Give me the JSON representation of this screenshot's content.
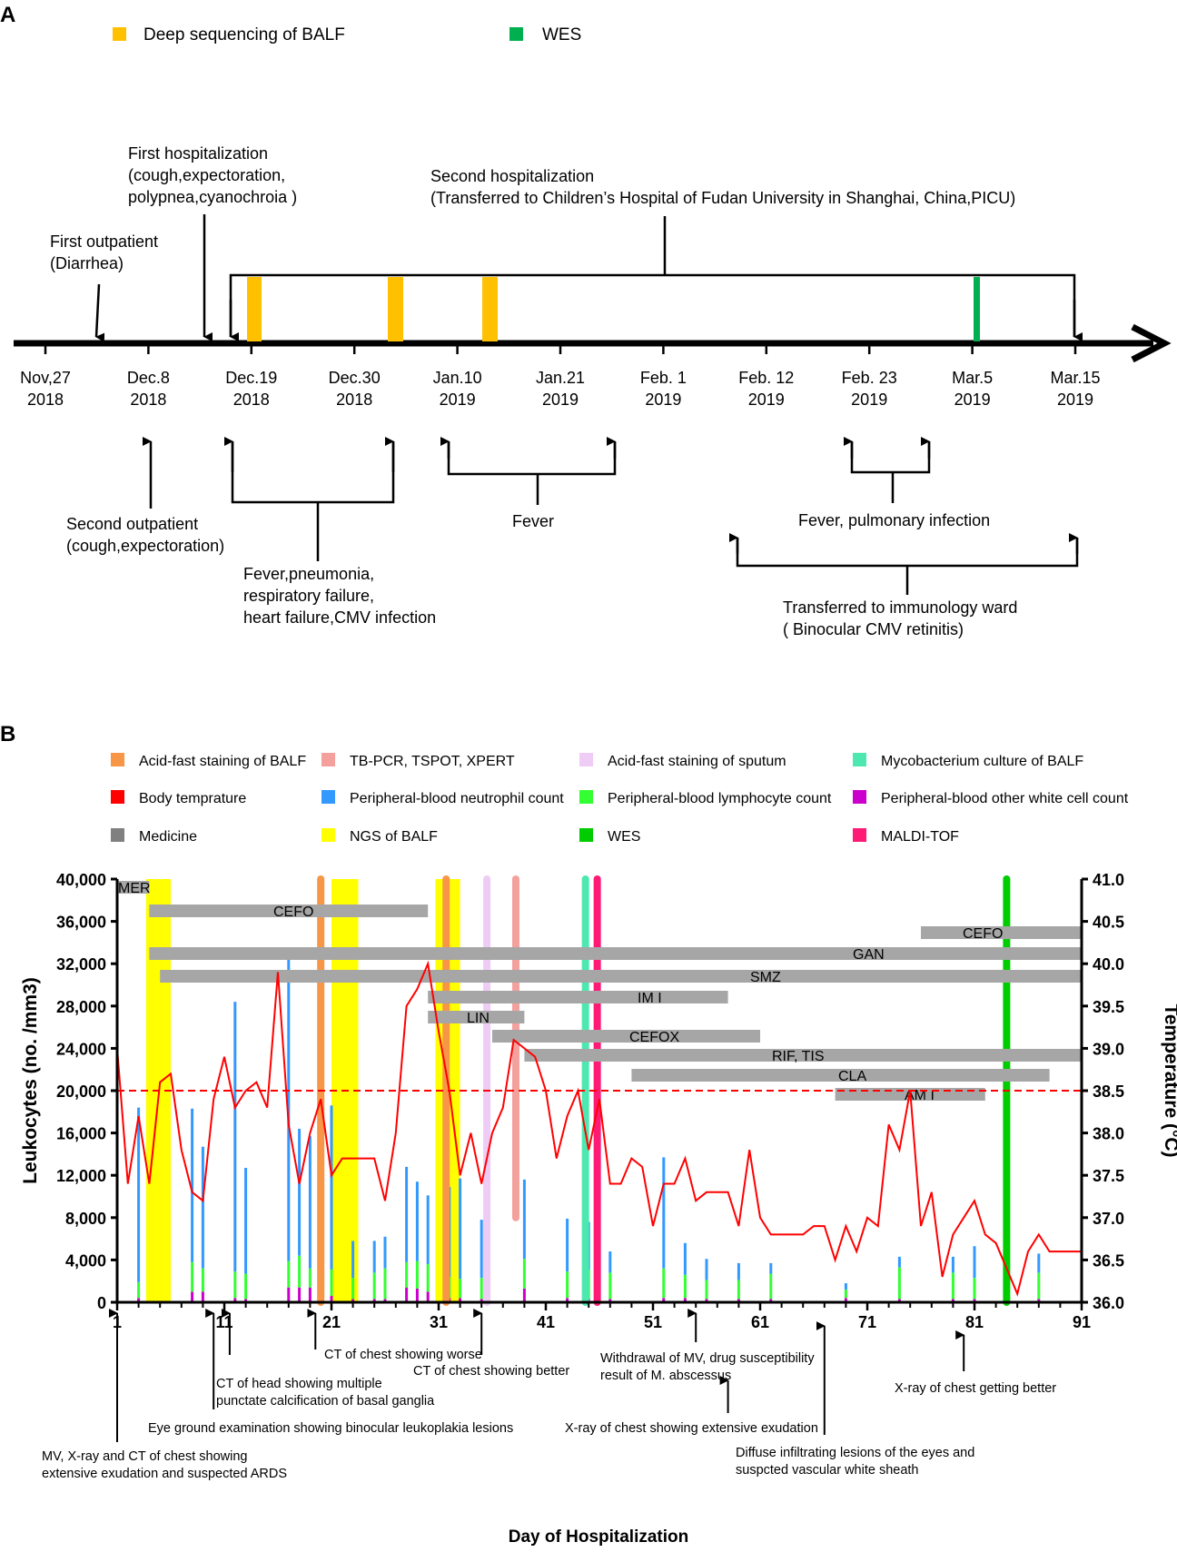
{
  "panelA": {
    "label": "A",
    "legend": [
      {
        "label": "Deep sequencing of BALF",
        "color": "#FFC000"
      },
      {
        "label": "WES",
        "color": "#00B050"
      }
    ],
    "dates": [
      {
        "line1": "Nov,27",
        "line2": "2018"
      },
      {
        "line1": "Dec.8",
        "line2": "2018"
      },
      {
        "line1": "Dec.19",
        "line2": "2018"
      },
      {
        "line1": "Dec.30",
        "line2": "2018"
      },
      {
        "line1": "Jan.10",
        "line2": "2019"
      },
      {
        "line1": "Jan.21",
        "line2": "2019"
      },
      {
        "line1": "Feb. 1",
        "line2": "2019"
      },
      {
        "line1": "Feb. 12",
        "line2": "2019"
      },
      {
        "line1": "Feb. 23",
        "line2": "2019"
      },
      {
        "line1": "Mar.5",
        "line2": "2019"
      },
      {
        "line1": "Mar.15",
        "line2": "2019"
      }
    ],
    "first_outpatient": [
      "First outpatient",
      "(Diarrhea)"
    ],
    "first_hospitalization": [
      "First hospitalization",
      "(cough,expectoration,",
      "polypnea,cyanochroia )"
    ],
    "second_hospitalization": [
      "Second hospitalization",
      "(Transferred to Children’s Hospital of Fudan University in Shanghai, China,PICU)"
    ],
    "second_outpatient": [
      "Second outpatient",
      "(cough,expectoration)"
    ],
    "fever_pneumonia": [
      "Fever,pneumonia,",
      "respiratory failure,",
      "heart failure,CMV infection"
    ],
    "fever": [
      "Fever"
    ],
    "fever_pulmonary": [
      "Fever, pulmonary infection"
    ],
    "immunology": [
      "Transferred to immunology ward",
      "( Binocular CMV retinitis)"
    ]
  },
  "panelB": {
    "label": "B",
    "legend": [
      {
        "label": "Acid-fast staining of BALF",
        "color": "#F79646"
      },
      {
        "label": "TB-PCR, TSPOT, XPERT",
        "color": "#F4A09C"
      },
      {
        "label": "Acid-fast staining of sputum",
        "color": "#EFCCF5"
      },
      {
        "label": "Mycobacterium culture of BALF",
        "color": "#4DE8B0"
      },
      {
        "label": "Body temprature",
        "color": "#FF0000"
      },
      {
        "label": "Peripheral-blood neutrophil count",
        "color": "#3399FF"
      },
      {
        "label": "Peripheral-blood lymphocyte count",
        "color": "#33FF33"
      },
      {
        "label": "Peripheral-blood other white cell count",
        "color": "#CC00CC"
      },
      {
        "label": "Medicine",
        "color": "#808080"
      },
      {
        "label": "NGS of BALF",
        "color": "#FFFF00"
      },
      {
        "label": "WES",
        "color": "#00CC00"
      },
      {
        "label": "MALDI-TOF",
        "color": "#FF1A75"
      }
    ],
    "annotations": [
      {
        "day": 1,
        "lines": [
          "MV, X-ray and CT of chest showing",
          "extensive exudation and suspected ARDS"
        ]
      },
      {
        "day": 10,
        "lines": [
          "CT of head showing multiple",
          "punctate calcification of basal ganglia"
        ]
      },
      {
        "day": 11.5,
        "lines": [
          "Eye ground examination showing binocular leukoplakia lesions"
        ]
      },
      {
        "day": 19.5,
        "lines": [
          "CT of chest showing worse"
        ]
      },
      {
        "day": 35,
        "lines": [
          "CT of chest showing  better"
        ]
      },
      {
        "day": 55,
        "lines": [
          "Withdrawal of MV, drug susceptibility",
          "result of M. abscessus"
        ]
      },
      {
        "day": 58,
        "lines": [
          "X-ray of chest showing extensive exudation"
        ]
      },
      {
        "day": 67,
        "lines": [
          "Diffuse infiltrating lesions of the eyes and",
          "suspcted vascular white sheath"
        ]
      },
      {
        "day": 80,
        "lines": [
          "X-ray of chest getting better"
        ]
      }
    ]
  },
  "chart_data": {
    "type": "bar",
    "xlabel": "Day of Hospitalization",
    "ylabel": "Leukocytes (no. /mm3)",
    "y2label": "Temperature (°C)",
    "xlim": [
      1,
      91
    ],
    "xticks": [
      1,
      11,
      21,
      31,
      41,
      51,
      61,
      71,
      81,
      91
    ],
    "ylim": [
      0,
      40000
    ],
    "yticks": [
      0,
      4000,
      8000,
      12000,
      16000,
      20000,
      24000,
      28000,
      32000,
      36000,
      40000
    ],
    "ytick_labels": [
      "0",
      "4,000",
      "8,000",
      "12,000",
      "16,000",
      "20,000",
      "24,000",
      "28,000",
      "32,000",
      "36,000",
      "40,000"
    ],
    "y2lim": [
      36.0,
      41.0
    ],
    "y2ticks": [
      "36.0",
      "36.5",
      "37.0",
      "37.5",
      "38.0",
      "38.5",
      "39.0",
      "39.5",
      "40.0",
      "40.5",
      "41.0"
    ],
    "threshold_temp": 38.5,
    "leukocytes": {
      "days": [
        1,
        3,
        8,
        9,
        12,
        13,
        17,
        18,
        19,
        20,
        21,
        23,
        25,
        26,
        28,
        29,
        30,
        32,
        33,
        35,
        39,
        43,
        45,
        47,
        52,
        54,
        56,
        59,
        62,
        69,
        74,
        79,
        81,
        87
      ],
      "neutrophil": [
        25500,
        16500,
        14500,
        11500,
        25500,
        10000,
        29500,
        12000,
        12500,
        10500,
        15500,
        3500,
        3000,
        3000,
        9000,
        7500,
        6500,
        8500,
        9500,
        5500,
        7500,
        5000,
        4500,
        2000,
        10500,
        3000,
        2000,
        1600,
        1000,
        600,
        1000,
        1500,
        3000,
        1800
      ],
      "lymphocyte": [
        3000,
        1500,
        2800,
        2200,
        2500,
        2400,
        2500,
        3000,
        1800,
        1800,
        2500,
        2000,
        2500,
        2900,
        2400,
        2600,
        2600,
        2000,
        1800,
        2000,
        2800,
        2500,
        2800,
        2500,
        2800,
        2200,
        1800,
        1800,
        2400,
        800,
        3000,
        2500,
        2000,
        2500
      ],
      "other": [
        400,
        400,
        1000,
        1000,
        400,
        300,
        1400,
        1400,
        1400,
        1100,
        600,
        300,
        300,
        300,
        1400,
        1300,
        1000,
        400,
        400,
        300,
        1300,
        400,
        300,
        300,
        400,
        400,
        300,
        300,
        300,
        400,
        300,
        300,
        300,
        300
      ]
    },
    "temperature": {
      "days": [
        1,
        2,
        3,
        4,
        5,
        6,
        7,
        8,
        9,
        10,
        11,
        12,
        13,
        14,
        15,
        16,
        17,
        18,
        19,
        20,
        21,
        22,
        23,
        24,
        25,
        26,
        27,
        28,
        29,
        30,
        31,
        32,
        33,
        34,
        35,
        36,
        37,
        38,
        39,
        40,
        41,
        42,
        43,
        44,
        45,
        46,
        47,
        48,
        49,
        50,
        51,
        52,
        53,
        54,
        55,
        56,
        57,
        58,
        59,
        60,
        61,
        62,
        63,
        64,
        65,
        66,
        67,
        68,
        69,
        70,
        71,
        72,
        73,
        74,
        75,
        76,
        77,
        78,
        79,
        80,
        81,
        82,
        83,
        84,
        85,
        86,
        87,
        88,
        89,
        90,
        91
      ],
      "values": [
        39.0,
        37.4,
        38.2,
        37.4,
        38.6,
        38.7,
        37.8,
        37.3,
        37.2,
        38.4,
        38.9,
        38.3,
        38.5,
        38.6,
        38.3,
        39.9,
        38.1,
        37.4,
        38.0,
        38.4,
        37.5,
        37.7,
        37.7,
        37.7,
        37.7,
        37.2,
        38.0,
        39.5,
        39.7,
        40.0,
        39.2,
        38.5,
        37.5,
        38.0,
        37.4,
        38.0,
        38.3,
        39.1,
        39.0,
        38.9,
        38.5,
        37.7,
        38.2,
        38.5,
        37.8,
        38.4,
        37.4,
        37.4,
        37.7,
        37.6,
        36.9,
        37.4,
        37.4,
        37.7,
        37.2,
        37.3,
        37.3,
        37.3,
        36.9,
        37.8,
        37.0,
        36.8,
        36.8,
        36.8,
        36.8,
        36.9,
        36.9,
        36.5,
        36.9,
        36.6,
        37.0,
        36.9,
        38.1,
        37.8,
        38.5,
        36.9,
        37.3,
        36.3,
        36.8,
        37.0,
        37.2,
        36.8,
        36.7,
        36.4,
        36.1,
        36.6,
        36.8,
        36.6,
        36.6,
        36.6,
        36.6
      ]
    },
    "medicine": [
      {
        "name": "MER",
        "start": 1,
        "end": 4
      },
      {
        "name": "CEFO",
        "start": 4,
        "end": 30
      },
      {
        "name": "CEFO",
        "start": 76,
        "end": 91
      },
      {
        "name": "GAN",
        "start": 4,
        "end": 91
      },
      {
        "name": "SMZ",
        "start": 5,
        "end": 91
      },
      {
        "name": "IM I",
        "start": 30,
        "end": 58
      },
      {
        "name": "LIN",
        "start": 30,
        "end": 39
      },
      {
        "name": "CEFOX",
        "start": 36,
        "end": 61
      },
      {
        "name": "RIF, TIS",
        "start": 39,
        "end": 91
      },
      {
        "name": "CLA",
        "start": 49,
        "end": 88
      },
      {
        "name": "AM I",
        "start": 68,
        "end": 82
      }
    ],
    "ngs_balf": [
      {
        "start": 3.7,
        "end": 6
      },
      {
        "start": 21,
        "end": 23.5
      },
      {
        "start": 30.7,
        "end": 33
      }
    ],
    "markers": [
      {
        "type": "Acid-fast staining of BALF",
        "day": 20,
        "color": "#F79646",
        "top": 41.0,
        "bottom": 36.0
      },
      {
        "type": "Acid-fast staining of BALF",
        "day": 31.7,
        "color": "#F79646",
        "top": 41.0,
        "bottom": 36.0
      },
      {
        "type": "Acid-fast staining of sputum",
        "day": 35.5,
        "color": "#EFCCF5",
        "top": 41.0,
        "bottom": 36.0
      },
      {
        "type": "TB-PCR, TSPOT, XPERT",
        "day": 38.2,
        "color": "#F4A09C",
        "top": 41.0,
        "bottom": 37.0
      },
      {
        "type": "Mycobacterium culture of BALF",
        "day": 44.7,
        "color": "#4DE8B0",
        "top": 41.0,
        "bottom": 36.0
      },
      {
        "type": "MALDI-TOF",
        "day": 45.8,
        "color": "#FF1A75",
        "top": 41.0,
        "bottom": 36.0
      },
      {
        "type": "WES",
        "day": 84,
        "color": "#00CC00",
        "top": 41.0,
        "bottom": 36.0
      }
    ]
  }
}
